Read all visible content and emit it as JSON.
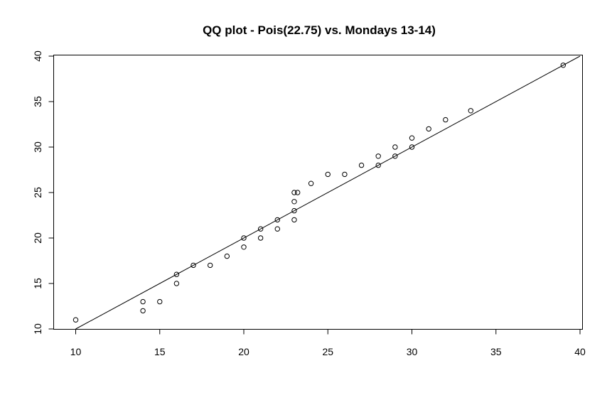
{
  "chart_data": {
    "type": "scatter",
    "title": "QQ plot - Pois(22.75) vs. Mondays 13-14)",
    "xlabel": "",
    "ylabel": "",
    "xlim": [
      10,
      40
    ],
    "ylim": [
      10,
      40
    ],
    "x_ticks": [
      10,
      15,
      20,
      25,
      30,
      35,
      40
    ],
    "y_ticks": [
      10,
      15,
      20,
      25,
      30,
      35,
      40
    ],
    "reference_line": [
      [
        10,
        10
      ],
      [
        40,
        40
      ]
    ],
    "points": [
      [
        10,
        11
      ],
      [
        14,
        12
      ],
      [
        14,
        13
      ],
      [
        15,
        13
      ],
      [
        16,
        15
      ],
      [
        16,
        16
      ],
      [
        17,
        17
      ],
      [
        18,
        17
      ],
      [
        19,
        18
      ],
      [
        20,
        19
      ],
      [
        20,
        20
      ],
      [
        21,
        20
      ],
      [
        21,
        21
      ],
      [
        22,
        21
      ],
      [
        22,
        22
      ],
      [
        23,
        22
      ],
      [
        23,
        23
      ],
      [
        23,
        24
      ],
      [
        23,
        25
      ],
      [
        23.2,
        25
      ],
      [
        24,
        26
      ],
      [
        25,
        27
      ],
      [
        26,
        27
      ],
      [
        27,
        28
      ],
      [
        28,
        28
      ],
      [
        28,
        29
      ],
      [
        29,
        29
      ],
      [
        29,
        30
      ],
      [
        30,
        30
      ],
      [
        30,
        31
      ],
      [
        31,
        32
      ],
      [
        32,
        33
      ],
      [
        33.5,
        34
      ],
      [
        39,
        39
      ]
    ],
    "grid": false,
    "legend": "none",
    "colors": {
      "ink": "#000000",
      "background": "#ffffff"
    }
  }
}
